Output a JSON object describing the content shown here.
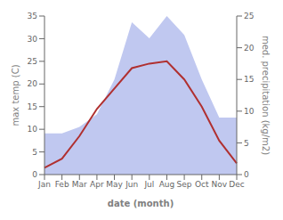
{
  "chart_data": {
    "type": "line",
    "categories": [
      "Jan",
      "Feb",
      "Mar",
      "Apr",
      "May",
      "Jun",
      "Jul",
      "Aug",
      "Sep",
      "Oct",
      "Nov",
      "Dec"
    ],
    "series": [
      {
        "type": "area",
        "color": "#c0c8f0",
        "axis": "y2",
        "values": [
          6.5,
          6.5,
          7.5,
          9.5,
          15.0,
          24.0,
          21.5,
          25.0,
          22.0,
          15.0,
          9.0,
          9.0
        ]
      },
      {
        "type": "line",
        "color": "#b03030",
        "values": [
          1.5,
          3.5,
          8.5,
          14.5,
          19.0,
          23.5,
          24.5,
          25.0,
          21.0,
          15.0,
          7.5,
          2.5
        ]
      }
    ],
    "xlabel": "date (month)",
    "ylabel": "max temp (C)",
    "y2label": "med. precipitation (kg/m2)",
    "ylim": [
      0,
      35
    ],
    "yticks": [
      0,
      5,
      10,
      15,
      20,
      25,
      30,
      35
    ],
    "y2lim": [
      0,
      25
    ],
    "y2ticks": [
      0,
      5,
      10,
      15,
      20,
      25
    ],
    "grid": false
  }
}
